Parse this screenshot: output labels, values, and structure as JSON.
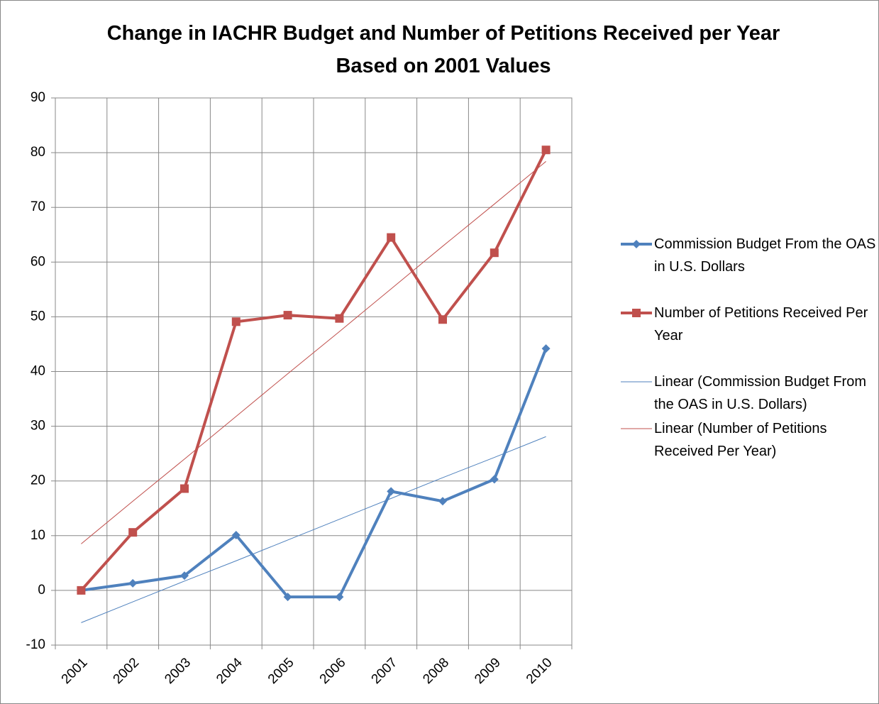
{
  "chart_data": {
    "type": "line",
    "title": "Change in IACHR Budget and Number of Petitions Received per Year Based on 2001 Values",
    "categories": [
      "2001",
      "2002",
      "2003",
      "2004",
      "2005",
      "2006",
      "2007",
      "2008",
      "2009",
      "2010"
    ],
    "series": [
      {
        "name": "Commission Budget From the OAS in U.S. Dollars",
        "color": "#4f81bd",
        "marker": "diamond",
        "values": [
          0,
          1.3,
          2.7,
          10.1,
          -1.2,
          -1.2,
          18.1,
          16.3,
          20.3,
          44.2
        ]
      },
      {
        "name": "Number of Petitions Received Per Year",
        "color": "#c0504d",
        "marker": "square",
        "values": [
          0,
          10.6,
          18.6,
          49.1,
          50.3,
          49.7,
          64.5,
          49.5,
          61.7,
          80.5
        ]
      },
      {
        "name": "Linear (Commission Budget From the OAS in U.S. Dollars)",
        "color": "#4f81bd",
        "marker": "none",
        "values": [
          -5.9,
          -2.1,
          1.7,
          5.4,
          9.2,
          13.0,
          16.8,
          20.6,
          24.3,
          28.1
        ]
      },
      {
        "name": "Linear (Number of Petitions Received Per Year)",
        "color": "#c0504d",
        "marker": "none",
        "values": [
          8.5,
          16.3,
          24.0,
          31.8,
          39.6,
          47.3,
          55.1,
          62.9,
          70.6,
          78.4
        ]
      }
    ],
    "ylim": [
      -10,
      90
    ],
    "yticks": [
      -10,
      0,
      10,
      20,
      30,
      40,
      50,
      60,
      70,
      80,
      90
    ],
    "grid": true,
    "legend": "right"
  }
}
